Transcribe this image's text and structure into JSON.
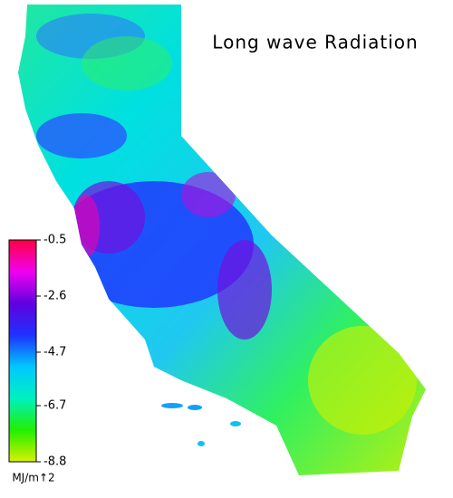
{
  "title": "Long wave Radiation",
  "colorbar": {
    "label": "MJ/m↑2",
    "lim": [
      -8.8,
      -0.5
    ],
    "ticks": [
      -0.5,
      -2.6,
      -4.7,
      -6.7,
      -8.8
    ],
    "colors": [
      "#d8f000",
      "#20f000",
      "#00f0c0",
      "#00c8ff",
      "#2030ff",
      "#6000e0",
      "#f000f0",
      "#ff0040"
    ]
  }
}
